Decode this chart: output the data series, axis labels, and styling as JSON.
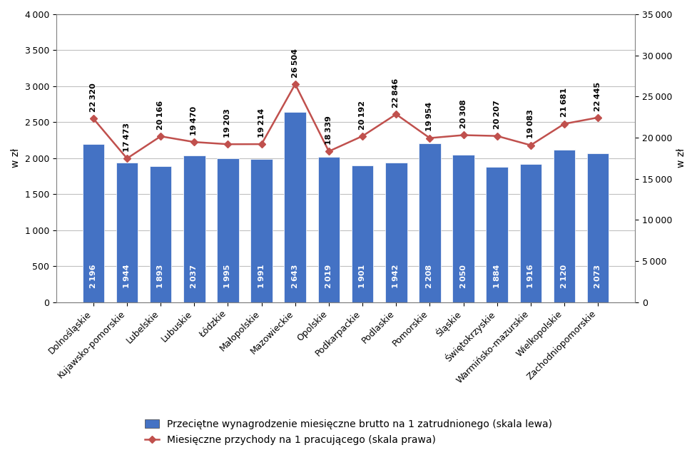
{
  "categories": [
    "Dolnośląskie",
    "Kujawsko-pomorskie",
    "Lubelskie",
    "Lubuskie",
    "Łódzkie",
    "Małopolskie",
    "Mazowieckie",
    "Opolskie",
    "Podkarpackie",
    "Podlaskie",
    "Pomorskie",
    "Śląskie",
    "Świętokrzyskie",
    "Warmińsko-mazurskie",
    "Wielkopolskie",
    "Zachodniopomorskie"
  ],
  "bar_values": [
    2196,
    1944,
    1893,
    2037,
    1995,
    1991,
    2643,
    2019,
    1901,
    1942,
    2208,
    2050,
    1884,
    1916,
    2120,
    2073
  ],
  "line_values": [
    22320,
    17473,
    20166,
    19470,
    19203,
    19214,
    26504,
    18339,
    20192,
    22846,
    19954,
    20308,
    20207,
    19083,
    21681,
    22445
  ],
  "bar_color": "#4472C4",
  "line_color": "#C0504D",
  "bar_label_color": "white",
  "line_label_color": "black",
  "ylabel_left": "w zł",
  "ylabel_right": "w zł",
  "ylim_left": [
    0,
    4000
  ],
  "ylim_right": [
    0,
    35000
  ],
  "yticks_left": [
    0,
    500,
    1000,
    1500,
    2000,
    2500,
    3000,
    3500,
    4000
  ],
  "yticks_right": [
    0,
    5000,
    10000,
    15000,
    20000,
    25000,
    30000,
    35000
  ],
  "legend_bar": "Przeciętne wynagrodzenie miesięczne brutto na 1 zatrudnionego (skala lewa)",
  "legend_line": "Miesięczne przychody na 1 pracującego (skala prawa)",
  "background_color": "white",
  "grid_color": "#C0C0C0",
  "bar_fontsize": 8,
  "line_fontsize": 8,
  "tick_fontsize": 9,
  "legend_fontsize": 10,
  "ylabel_fontsize": 10,
  "marker": "D",
  "marker_facecolor": "#C0504D",
  "marker_edgecolor": "#C0504D",
  "marker_size": 5
}
